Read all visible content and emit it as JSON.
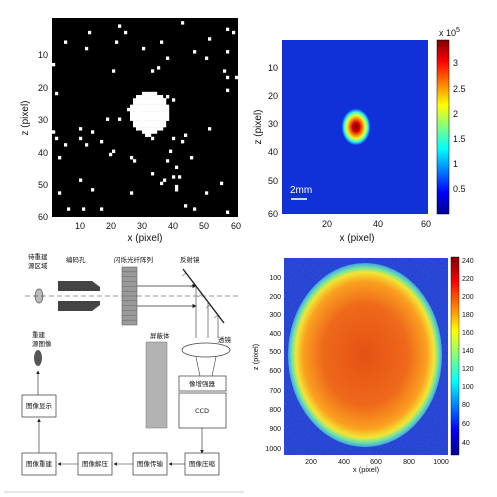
{
  "panel_a": {
    "xlabel": "x (pixel)",
    "ylabel": "z (pixel)",
    "xticks": [
      "10",
      "20",
      "30",
      "40",
      "50",
      "60"
    ],
    "yticks": [
      "10",
      "20",
      "30",
      "40",
      "50",
      "60"
    ]
  },
  "panel_b": {
    "xlabel": "x (pixel)",
    "ylabel": "z (pixel)",
    "xticks": [
      "20",
      "40",
      "60"
    ],
    "yticks": [
      "10",
      "20",
      "30",
      "40",
      "50",
      "60"
    ],
    "cbar_ticks": [
      "3",
      "2.5",
      "2",
      "1.5",
      "1",
      "0.5"
    ],
    "cbar_exp_base": "x 10",
    "cbar_exp_power": "5",
    "scalebar": "2mm"
  },
  "panel_c": {
    "lbl_source": [
      "待重建",
      "源区域"
    ],
    "lbl_coded": "编码孔",
    "lbl_fiber": "闪烁光纤阵列",
    "lbl_mirror": "反射镜",
    "lbl_recon_img": [
      "重建",
      "源图像"
    ],
    "lbl_shield": "屏蔽体",
    "lbl_lens": "透镜",
    "lbl_intensifier": "像增强器",
    "lbl_ccd": "CCD",
    "lbl_display": "图像显示",
    "lbl_recon": "图像重建",
    "lbl_decompress": "图像解压",
    "lbl_transmit": "图像传输",
    "lbl_compress": "图像压缩"
  },
  "panel_d": {
    "xlabel": "x (pixel)",
    "ylabel": "z (pixel)",
    "xticks": [
      "200",
      "400",
      "600",
      "800",
      "1000"
    ],
    "yticks": [
      "100",
      "200",
      "300",
      "400",
      "500",
      "600",
      "700",
      "800",
      "900",
      "1000"
    ],
    "cbar_ticks": [
      "240",
      "220",
      "200",
      "180",
      "160",
      "140",
      "120",
      "100",
      "80",
      "60",
      "40"
    ]
  }
}
